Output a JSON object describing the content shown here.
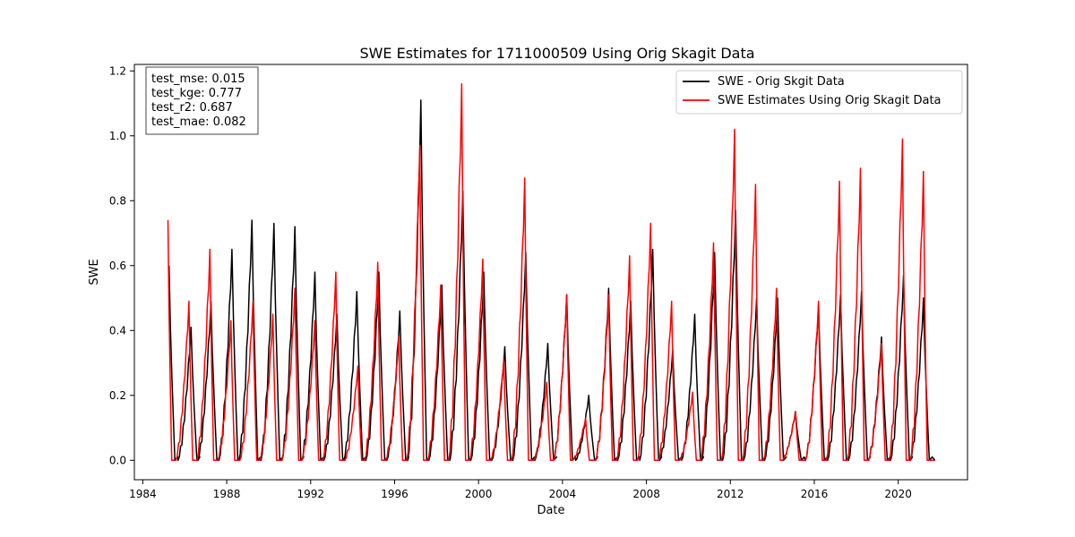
{
  "chart_data": {
    "type": "line",
    "title": "SWE Estimates for 1711000509 Using Orig Skagit Data",
    "xlabel": "Date",
    "ylabel": "SWE",
    "xlim": [
      1983.6,
      2023.3
    ],
    "ylim": [
      -0.06,
      1.22
    ],
    "grid": false,
    "legend_position": "top-right",
    "x_ticks": [
      1984,
      1988,
      1992,
      1996,
      2000,
      2004,
      2008,
      2012,
      2016,
      2020
    ],
    "x_tick_labels": [
      "1984",
      "1988",
      "1992",
      "1996",
      "2000",
      "2004",
      "2008",
      "2012",
      "2016",
      "2020"
    ],
    "y_ticks": [
      0.0,
      0.2,
      0.4,
      0.6,
      0.8,
      1.0,
      1.2
    ],
    "y_tick_labels": [
      "0.0",
      "0.2",
      "0.4",
      "0.6",
      "0.8",
      "1.0",
      "1.2"
    ],
    "metrics": [
      "test_mse: 0.015",
      "test_kge: 0.777",
      "test_r2: 0.687",
      "test_mae: 0.082"
    ],
    "series": [
      {
        "name": "SWE - Orig Skgit Data",
        "color": "#000000",
        "peaks": [
          {
            "x": 1985.25,
            "y": 0.6
          },
          {
            "x": 1986.3,
            "y": 0.41
          },
          {
            "x": 1987.25,
            "y": 0.49
          },
          {
            "x": 1988.25,
            "y": 0.65
          },
          {
            "x": 1989.2,
            "y": 0.74
          },
          {
            "x": 1990.25,
            "y": 0.73
          },
          {
            "x": 1991.25,
            "y": 0.72
          },
          {
            "x": 1992.2,
            "y": 0.58
          },
          {
            "x": 1993.25,
            "y": 0.45
          },
          {
            "x": 1994.2,
            "y": 0.52
          },
          {
            "x": 1995.25,
            "y": 0.58
          },
          {
            "x": 1996.25,
            "y": 0.46
          },
          {
            "x": 1997.25,
            "y": 1.11
          },
          {
            "x": 1998.25,
            "y": 0.54
          },
          {
            "x": 1999.25,
            "y": 0.83
          },
          {
            "x": 2000.25,
            "y": 0.58
          },
          {
            "x": 2001.25,
            "y": 0.35
          },
          {
            "x": 2002.25,
            "y": 0.64
          },
          {
            "x": 2003.3,
            "y": 0.36
          },
          {
            "x": 2004.2,
            "y": 0.51
          },
          {
            "x": 2005.25,
            "y": 0.2
          },
          {
            "x": 2006.2,
            "y": 0.53
          },
          {
            "x": 2007.25,
            "y": 0.49
          },
          {
            "x": 2008.3,
            "y": 0.65
          },
          {
            "x": 2009.25,
            "y": 0.34
          },
          {
            "x": 2010.3,
            "y": 0.45
          },
          {
            "x": 2011.25,
            "y": 0.64
          },
          {
            "x": 2012.25,
            "y": 0.77
          },
          {
            "x": 2013.25,
            "y": 0.5
          },
          {
            "x": 2014.25,
            "y": 0.5
          },
          {
            "x": 2015.1,
            "y": 0.15
          },
          {
            "x": 2016.2,
            "y": 0.48
          },
          {
            "x": 2017.25,
            "y": 0.51
          },
          {
            "x": 2018.25,
            "y": 0.52
          },
          {
            "x": 2019.2,
            "y": 0.38
          },
          {
            "x": 2020.25,
            "y": 0.57
          },
          {
            "x": 2021.2,
            "y": 0.5
          }
        ]
      },
      {
        "name": "SWE Estimates Using Orig Skagit Data",
        "color": "#ff0000",
        "peaks": [
          {
            "x": 1985.2,
            "y": 0.74
          },
          {
            "x": 1986.2,
            "y": 0.49
          },
          {
            "x": 1987.2,
            "y": 0.65
          },
          {
            "x": 1988.2,
            "y": 0.43
          },
          {
            "x": 1989.25,
            "y": 0.49
          },
          {
            "x": 1990.2,
            "y": 0.45
          },
          {
            "x": 1991.25,
            "y": 0.53
          },
          {
            "x": 1992.2,
            "y": 0.43
          },
          {
            "x": 1993.2,
            "y": 0.58
          },
          {
            "x": 1994.25,
            "y": 0.29
          },
          {
            "x": 1995.2,
            "y": 0.61
          },
          {
            "x": 1996.2,
            "y": 0.38
          },
          {
            "x": 1997.2,
            "y": 0.97
          },
          {
            "x": 1998.2,
            "y": 0.54
          },
          {
            "x": 1999.2,
            "y": 1.16
          },
          {
            "x": 2000.2,
            "y": 0.62
          },
          {
            "x": 2001.2,
            "y": 0.31
          },
          {
            "x": 2002.2,
            "y": 0.87
          },
          {
            "x": 2003.25,
            "y": 0.24
          },
          {
            "x": 2004.2,
            "y": 0.51
          },
          {
            "x": 2005.1,
            "y": 0.13
          },
          {
            "x": 2006.2,
            "y": 0.51
          },
          {
            "x": 2007.2,
            "y": 0.63
          },
          {
            "x": 2008.2,
            "y": 0.73
          },
          {
            "x": 2009.2,
            "y": 0.49
          },
          {
            "x": 2010.2,
            "y": 0.21
          },
          {
            "x": 2011.2,
            "y": 0.67
          },
          {
            "x": 2012.2,
            "y": 1.02
          },
          {
            "x": 2013.2,
            "y": 0.85
          },
          {
            "x": 2014.2,
            "y": 0.53
          },
          {
            "x": 2015.1,
            "y": 0.15
          },
          {
            "x": 2016.2,
            "y": 0.49
          },
          {
            "x": 2017.2,
            "y": 0.86
          },
          {
            "x": 2018.2,
            "y": 0.9
          },
          {
            "x": 2019.2,
            "y": 0.36
          },
          {
            "x": 2020.2,
            "y": 0.99
          },
          {
            "x": 2021.2,
            "y": 0.89
          }
        ]
      }
    ]
  }
}
